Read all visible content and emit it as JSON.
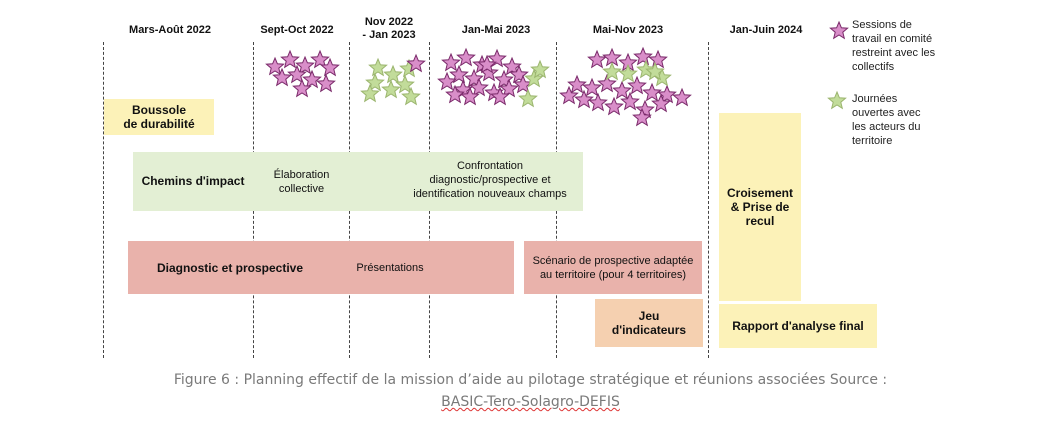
{
  "periods": [
    {
      "label": "Mars-Août 2022"
    },
    {
      "label": "Sept-Oct 2022"
    },
    {
      "label_line1": "Nov  2022",
      "label_line2": "- Jan 2023"
    },
    {
      "label": "Jan-Mai  2023"
    },
    {
      "label": "Mai-Nov  2023"
    },
    {
      "label": "Jan-Juin  2024"
    }
  ],
  "legend": {
    "pink": {
      "text_lines": [
        "Sessions de",
        "travail en comité",
        "restreint avec les",
        "collectifs"
      ],
      "color": "#d98ec9"
    },
    "green": {
      "text_lines": [
        "Journées",
        "ouvertes avec",
        "les acteurs du",
        "territoire"
      ],
      "color": "#c2dc9a"
    }
  },
  "star_groups": [
    {
      "period": "Sept-Oct 2022",
      "type": "pink",
      "count": 10
    },
    {
      "period": "Nov 2022 - Jan 2023",
      "type": "green",
      "count": 8,
      "extra_pink": 1
    },
    {
      "period": "Jan-Mai 2023",
      "type": "pink",
      "count": 20,
      "extra_green": 3
    },
    {
      "period": "Mai-Nov 2023",
      "type": "pink",
      "count": 21,
      "extra_green": 5
    }
  ],
  "boxes": {
    "boussole": {
      "line1": "Boussole",
      "line2": "de durabilité",
      "color": "#fcf2b8"
    },
    "chemins": {
      "title": "Chemins d'impact",
      "note1_line1": "Élaboration",
      "note1_line2": "collective",
      "note2_line1": "Confrontation",
      "note2_line2": "diagnostic/prospective et",
      "note2_line3": "identification nouveaux champs",
      "color": "#e3efd4"
    },
    "diagnostic": {
      "title": "Diagnostic et prospective",
      "note": "Présentations",
      "color": "#e9b2ab"
    },
    "scenario": {
      "line1": "Scénario de prospective adaptée",
      "line2": "au territoire (pour 4 territoires)",
      "color": "#e9b2ab"
    },
    "jeu": {
      "line1": "Jeu",
      "line2": "d'indicateurs",
      "color": "#f5d0b0"
    },
    "croisement": {
      "line1": "Croisement",
      "line2": "& Prise de",
      "line3": "recul",
      "color": "#fcf2b8"
    },
    "rapport": {
      "text": "Rapport d'analyse final",
      "color": "#fcf2b8"
    }
  },
  "caption": {
    "line1": "Figure 6 : Planning effectif de la mission d’aide au pilotage stratégique et réunions associées Source :",
    "line2": "BASIC-Tero-Solagro-DEFIS"
  }
}
